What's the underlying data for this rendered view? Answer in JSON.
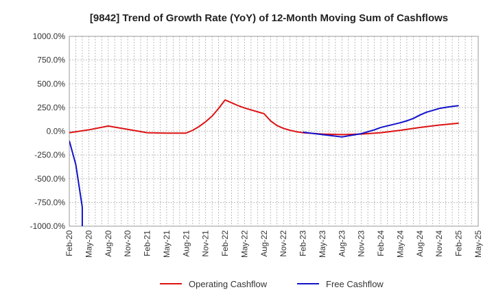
{
  "chart_data": {
    "type": "line",
    "title": "[9842]  Trend of Growth Rate (YoY) of 12-Month Moving Sum of Cashflows",
    "xlabel": "",
    "ylabel": "",
    "ylim": [
      -1000,
      1000
    ],
    "y_ticks": [
      1000,
      750,
      500,
      250,
      0,
      -250,
      -500,
      -750,
      -1000
    ],
    "y_tick_labels": [
      "1000.0%",
      "750.0%",
      "500.0%",
      "250.0%",
      "0.0%",
      "-250.0%",
      "-500.0%",
      "-750.0%",
      "-1000.0%"
    ],
    "x_tick_labels": [
      "Feb-20",
      "May-20",
      "Aug-20",
      "Nov-20",
      "Feb-21",
      "May-21",
      "Aug-21",
      "Nov-21",
      "Feb-22",
      "May-22",
      "Aug-22",
      "Nov-22",
      "Feb-23",
      "May-23",
      "Aug-23",
      "Nov-23",
      "Feb-24",
      "May-24",
      "Aug-24",
      "Nov-24",
      "Feb-25",
      "May-25"
    ],
    "grid": true,
    "legend_position": "bottom",
    "series": [
      {
        "name": "Operating Cashflow",
        "color": "#dd1111",
        "points": [
          [
            "Feb-20",
            -15
          ],
          [
            "May-20",
            15
          ],
          [
            "Aug-20",
            55
          ],
          [
            "Nov-20",
            20
          ],
          [
            "Feb-21",
            -15
          ],
          [
            "May-21",
            -20
          ],
          [
            "Aug-21",
            -20
          ],
          [
            "Sep-21",
            10
          ],
          [
            "Oct-21",
            50
          ],
          [
            "Nov-21",
            100
          ],
          [
            "Dec-21",
            160
          ],
          [
            "Jan-22",
            240
          ],
          [
            "Feb-22",
            330
          ],
          [
            "Mar-22",
            300
          ],
          [
            "Apr-22",
            270
          ],
          [
            "May-22",
            245
          ],
          [
            "Jun-22",
            225
          ],
          [
            "Jul-22",
            205
          ],
          [
            "Aug-22",
            185
          ],
          [
            "Sep-22",
            110
          ],
          [
            "Oct-22",
            60
          ],
          [
            "Nov-22",
            30
          ],
          [
            "Dec-22",
            10
          ],
          [
            "Jan-23",
            -5
          ],
          [
            "Feb-23",
            -15
          ],
          [
            "May-23",
            -30
          ],
          [
            "Aug-23",
            -35
          ],
          [
            "Nov-23",
            -30
          ],
          [
            "Feb-24",
            -15
          ],
          [
            "May-24",
            10
          ],
          [
            "Aug-24",
            40
          ],
          [
            "Nov-24",
            65
          ],
          [
            "Feb-25",
            85
          ]
        ]
      },
      {
        "name": "Free Cashflow",
        "color": "#1111cc",
        "points": [
          [
            "Feb-20",
            -100
          ],
          [
            "Mar-20",
            -350
          ],
          [
            "Apr-20",
            -800
          ],
          [
            "Apr-20",
            -1000
          ]
        ]
      },
      {
        "name": "Free Cashflow",
        "color": "#1111cc",
        "points": [
          [
            "Feb-23",
            -10
          ],
          [
            "May-23",
            -35
          ],
          [
            "Aug-23",
            -60
          ],
          [
            "Nov-23",
            -25
          ],
          [
            "Dec-23",
            -5
          ],
          [
            "Jan-24",
            15
          ],
          [
            "Feb-24",
            40
          ],
          [
            "May-24",
            90
          ],
          [
            "Jun-24",
            110
          ],
          [
            "Jul-24",
            135
          ],
          [
            "Aug-24",
            170
          ],
          [
            "Sep-24",
            200
          ],
          [
            "Oct-24",
            220
          ],
          [
            "Nov-24",
            240
          ],
          [
            "Dec-24",
            252
          ],
          [
            "Jan-25",
            262
          ],
          [
            "Feb-25",
            270
          ]
        ]
      }
    ],
    "legend": [
      {
        "label": "Operating Cashflow",
        "color": "#dd1111"
      },
      {
        "label": "Free Cashflow",
        "color": "#1111cc"
      }
    ]
  }
}
